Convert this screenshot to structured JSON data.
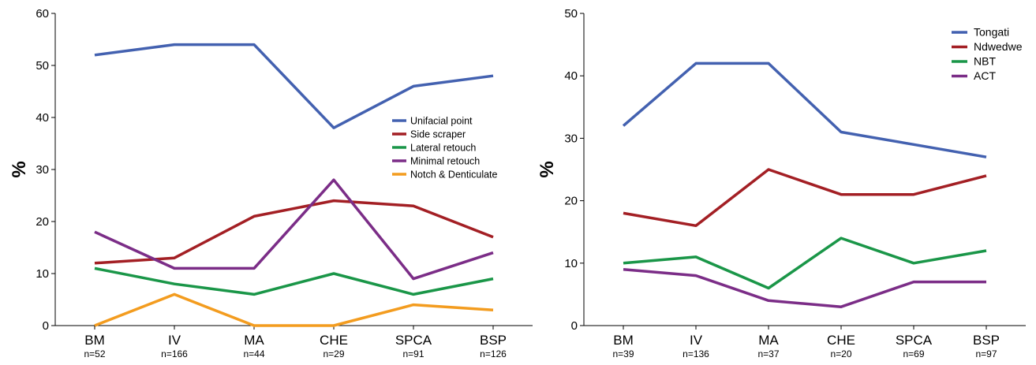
{
  "chart_data": [
    {
      "type": "line",
      "ylabel": "%",
      "ylim": [
        0,
        60
      ],
      "yticks": [
        0,
        10,
        20,
        30,
        40,
        50,
        60
      ],
      "categories": [
        "BM",
        "IV",
        "MA",
        "CHE",
        "SPCA",
        "BSP"
      ],
      "sample_sizes": [
        "n=52",
        "n=166",
        "n=44",
        "n=29",
        "n=91",
        "n=126"
      ],
      "legend_position": "center-right",
      "series": [
        {
          "name": "Unifacial point",
          "color": "#4361b0",
          "values": [
            52,
            54,
            54,
            38,
            46,
            48
          ]
        },
        {
          "name": "Side scraper",
          "color": "#a31f24",
          "values": [
            12,
            13,
            21,
            24,
            23,
            17
          ]
        },
        {
          "name": "Lateral retouch",
          "color": "#1a9648",
          "values": [
            11,
            8,
            6,
            10,
            6,
            9
          ]
        },
        {
          "name": "Minimal retouch",
          "color": "#7b2d87",
          "values": [
            18,
            11,
            11,
            28,
            9,
            14
          ]
        },
        {
          "name": "Notch & Denticulate",
          "color": "#f39c1f",
          "values": [
            0,
            6,
            0,
            0,
            4,
            3
          ]
        }
      ]
    },
    {
      "type": "line",
      "ylabel": "%",
      "ylim": [
        0,
        50
      ],
      "yticks": [
        0,
        10,
        20,
        30,
        40,
        50
      ],
      "categories": [
        "BM",
        "IV",
        "MA",
        "CHE",
        "SPCA",
        "BSP"
      ],
      "sample_sizes": [
        "n=39",
        "n=136",
        "n=37",
        "n=20",
        "n=69",
        "n=97"
      ],
      "legend_position": "top-right",
      "series": [
        {
          "name": "Tongati",
          "color": "#4361b0",
          "values": [
            32,
            42,
            42,
            31,
            29,
            27
          ]
        },
        {
          "name": "Ndwedwe",
          "color": "#a31f24",
          "values": [
            18,
            16,
            25,
            21,
            21,
            24
          ]
        },
        {
          "name": "NBT",
          "color": "#1a9648",
          "values": [
            10,
            11,
            6,
            14,
            10,
            12
          ]
        },
        {
          "name": "ACT",
          "color": "#7b2d87",
          "values": [
            9,
            8,
            4,
            3,
            7,
            7
          ]
        }
      ]
    }
  ]
}
